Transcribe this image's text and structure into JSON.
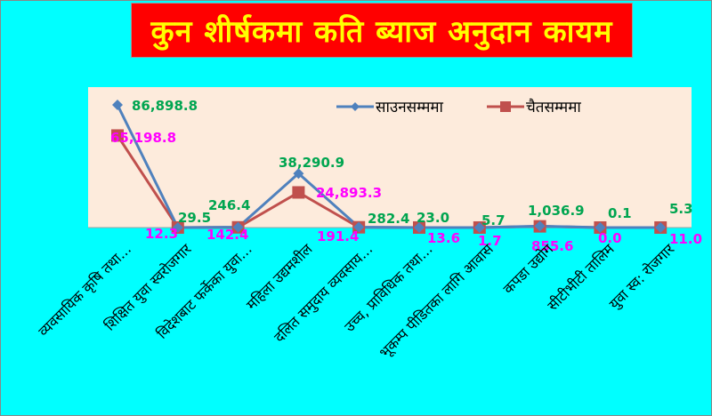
{
  "title": "कुन शीर्षकमा कति ब्याज अनुदान कायम",
  "colors": {
    "background": "#00ffff",
    "title_bg": "#ff0000",
    "title_text": "#ffff00",
    "plot_bg": "#fdebdc",
    "series1": "#4f81bd",
    "series2": "#c0504d",
    "series1_label": "#00a550",
    "series2_label": "#ff00ff"
  },
  "legend": {
    "series1": "साउनसम्ममा",
    "series2": "चैतसम्ममा"
  },
  "chart_data": {
    "type": "line",
    "title": "कुन शीर्षकमा कति ब्याज अनुदान कायम",
    "xlabel": "",
    "ylabel": "",
    "grid": false,
    "legend_position": "top-right inside plot",
    "categories": [
      "व्यवसायिक कृषि तथा...",
      "शिक्षित युवा स्वरोजगार",
      "विदेशबाट फर्केका युवा...",
      "महिला उद्यमशील",
      "दलित समुदाय व्यवसाय...",
      "उच्च, प्राविधिक तथा...",
      "भूकम्प पीडितका लागि आवास",
      "कपडा उद्योग",
      "सीटीभीटी तालिम",
      "युवा स्व: रोजगार"
    ],
    "series": [
      {
        "name": "साउनसम्ममा",
        "values": [
          86898.8,
          29.5,
          246.4,
          38290.9,
          282.4,
          23.0,
          5.7,
          1036.9,
          0.1,
          5.3
        ],
        "labels": [
          "86,898.8",
          "29.5",
          "246.4",
          "38,290.9",
          "282.4",
          "23.0",
          "5.7",
          "1,036.9",
          "0.1",
          "5.3"
        ]
      },
      {
        "name": "चैतसम्ममा",
        "values": [
          65198.8,
          12.3,
          142.4,
          24893.3,
          191.4,
          13.6,
          1.7,
          855.6,
          0.0,
          11.0
        ],
        "labels": [
          "65,198.8",
          "12.3",
          "142.4",
          "24,893.3",
          "191.4",
          "13.6",
          "1.7",
          "855.6",
          "0.0",
          "11.0"
        ]
      }
    ],
    "ylim": [
      0,
      100000
    ]
  }
}
